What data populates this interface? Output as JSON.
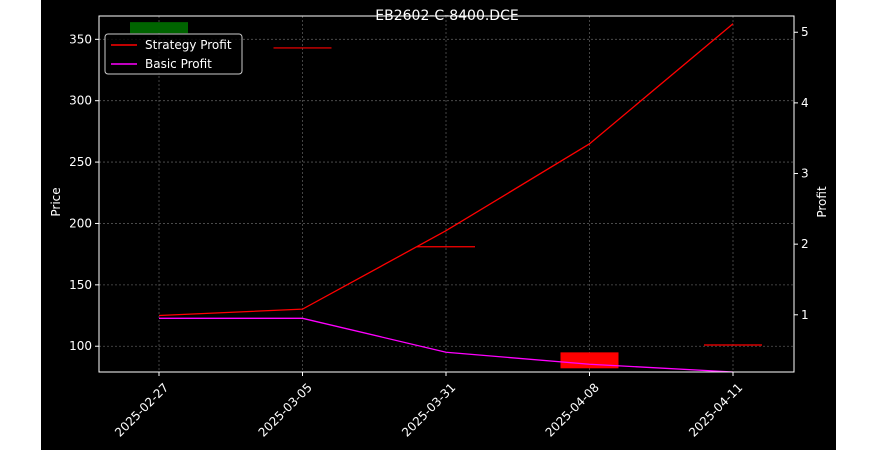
{
  "chart_data": {
    "type": "line",
    "title": "EB2602-C-8400.DCE",
    "xlabel": "",
    "ylabel_left": "Price",
    "ylabel_right": "Profit",
    "categories": [
      "2025-02-27",
      "2025-03-05",
      "2025-03-31",
      "2025-04-08",
      "2025-04-11"
    ],
    "ylim_left": [
      79,
      369
    ],
    "yticks_left": [
      100,
      150,
      200,
      250,
      300,
      350
    ],
    "ylim_right": [
      0.19,
      5.23
    ],
    "yticks_right": [
      1,
      2,
      3,
      4,
      5
    ],
    "series": [
      {
        "name": "Strategy Profit",
        "axis": "right",
        "color": "#ff0000",
        "values": [
          0.99,
          1.08,
          2.19,
          3.42,
          5.12
        ]
      },
      {
        "name": "Basic Profit",
        "axis": "right",
        "color": "#ff00ff",
        "values": [
          0.95,
          0.95,
          0.47,
          0.3,
          0.19
        ]
      }
    ],
    "candles": [
      {
        "x": "2025-02-27",
        "open": 355,
        "close": 364,
        "color": "#006400"
      },
      {
        "x": "2025-03-05",
        "open": 343,
        "close": 343,
        "color": "#ff0000"
      },
      {
        "x": "2025-03-31",
        "open": 181,
        "close": 181,
        "color": "#ff0000"
      },
      {
        "x": "2025-04-08",
        "open": 95,
        "close": 82,
        "color": "#ff0000"
      },
      {
        "x": "2025-04-11",
        "open": 101,
        "close": 101,
        "color": "#ff0000"
      }
    ],
    "grid": true,
    "legend_position": "top-left",
    "colors": {
      "background": "#000000",
      "foreground": "#ffffff",
      "grid": "#555555"
    }
  }
}
